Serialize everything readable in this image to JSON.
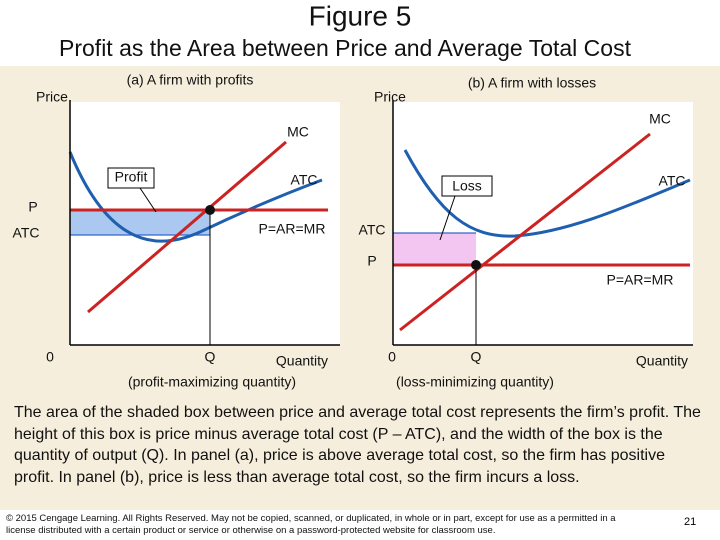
{
  "header": {
    "title": "Figure 5",
    "subtitle": "Profit as the Area between Price and Average Total Cost"
  },
  "panel_a": {
    "heading": "(a) A firm with profits",
    "y_axis": "Price",
    "x_axis": "Quantity",
    "origin": "0",
    "mc": "MC",
    "atc_curve": "ATC",
    "price_label": "P",
    "atc_label": "ATC",
    "demand": "P=AR=MR",
    "area": "Profit",
    "q": "Q",
    "q_note": "(profit-maximizing quantity)"
  },
  "panel_b": {
    "heading": "(b) A firm with losses",
    "y_axis": "Price",
    "x_axis": "Quantity",
    "origin": "0",
    "mc": "MC",
    "atc_curve": "ATC",
    "price_label": "P",
    "atc_label": "ATC",
    "demand": "P=AR=MR",
    "area": "Loss",
    "q": "Q",
    "q_note": "(loss-minimizing quantity)"
  },
  "caption": "The area of the shaded box between price and average total cost represents the firm’s profit. The height of this box is price minus average total cost (P – ATC), and the width of the box is the quantity of output (Q). In panel (a), price is above average total cost, so the firm has positive profit. In panel (b), price is less than average total cost, so the firm incurs a loss.",
  "footer": {
    "copyright": "© 2015 Cengage Learning. All Rights Reserved. May not be copied, scanned, or duplicated, in whole or in part, except for use as a permitted in a license distributed with a certain product or service or otherwise on a password-protected website for classroom use.",
    "page": "21"
  }
}
